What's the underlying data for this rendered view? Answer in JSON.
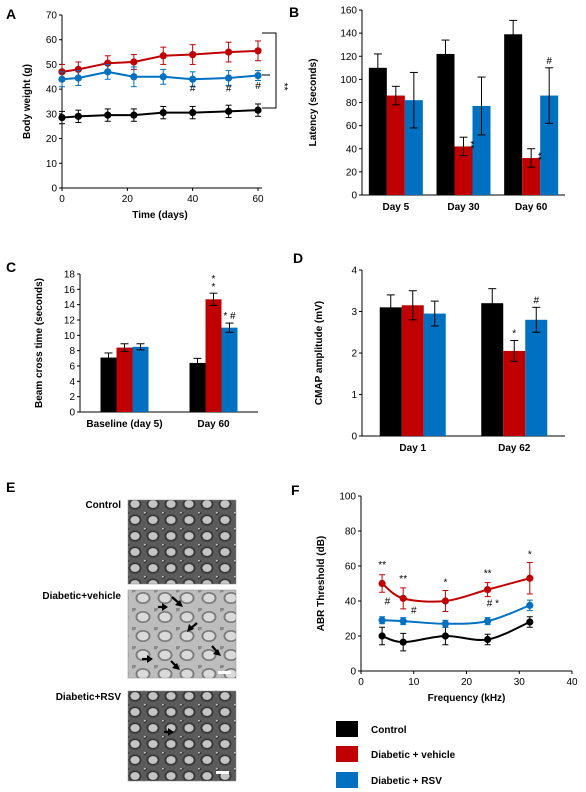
{
  "chart_data": [
    {
      "panel": "A",
      "type": "line",
      "xlabel": "Time (days)",
      "ylabel": "Body weight (g)",
      "xlim": [
        0,
        60
      ],
      "ylim": [
        0,
        70
      ],
      "x_ticks": [
        0,
        20,
        40,
        60
      ],
      "y_ticks": [
        0,
        10,
        20,
        30,
        40,
        50,
        60,
        70
      ],
      "x": [
        0,
        5,
        14,
        22,
        31,
        40,
        51,
        60
      ],
      "series": [
        {
          "name": "Control",
          "color": "#000000",
          "values": [
            28.5,
            29,
            29.5,
            29.5,
            30.5,
            30.5,
            31,
            31.5
          ],
          "errors": [
            2.5,
            2.5,
            2.5,
            2.5,
            2.5,
            2.5,
            2.5,
            2.5
          ]
        },
        {
          "name": "Diabetic + vehicle",
          "color": "#c00000",
          "values": [
            47,
            48,
            50.5,
            51,
            53.5,
            54,
            55,
            55.5
          ],
          "errors": [
            3,
            3,
            3,
            3,
            3.5,
            4,
            4,
            4
          ]
        },
        {
          "name": "Diabetic + RSV",
          "color": "#0070c0",
          "values": [
            44,
            44.5,
            47,
            45,
            45,
            44,
            44.5,
            45.5
          ],
          "errors": [
            3,
            3,
            3,
            4,
            3,
            3,
            3,
            2
          ]
        }
      ],
      "annotations": [
        {
          "text": "#",
          "x": 40,
          "y": 39
        },
        {
          "text": "#",
          "x": 51,
          "y": 39
        },
        {
          "text": "#",
          "x": 60,
          "y": 40
        },
        {
          "text": "**",
          "x": 67,
          "y": 41
        }
      ]
    },
    {
      "panel": "B",
      "type": "bar",
      "ylabel": "Latency (seconds)",
      "ylim": [
        0,
        160
      ],
      "y_ticks": [
        0,
        20,
        40,
        60,
        80,
        100,
        120,
        140,
        160
      ],
      "categories": [
        "Day 5",
        "Day 30",
        "Day 60"
      ],
      "series": [
        {
          "name": "Control",
          "color": "#000000",
          "values": [
            110,
            122,
            139
          ],
          "errors": [
            12,
            12,
            12
          ]
        },
        {
          "name": "Diabetic + vehicle",
          "color": "#c00000",
          "values": [
            86,
            42,
            32
          ],
          "errors": [
            8,
            8,
            8
          ]
        },
        {
          "name": "Diabetic + RSV",
          "color": "#0070c0",
          "values": [
            82,
            77,
            86
          ],
          "errors": [
            24,
            25,
            24
          ]
        }
      ],
      "annotations": [
        {
          "text": "**",
          "category": "Day 30",
          "series": "Diabetic + vehicle"
        },
        {
          "text": "**",
          "category": "Day 60",
          "series": "Diabetic + vehicle"
        },
        {
          "text": "#",
          "category": "Day 60",
          "series": "Diabetic + RSV"
        }
      ]
    },
    {
      "panel": "C",
      "type": "bar",
      "ylabel": "Beam cross time (seconds)",
      "ylim": [
        0,
        18
      ],
      "y_ticks": [
        0,
        2,
        4,
        6,
        8,
        10,
        12,
        14,
        16,
        18
      ],
      "categories": [
        "Baseline (day 5)",
        "Day 60"
      ],
      "series": [
        {
          "name": "Control",
          "color": "#000000",
          "values": [
            7.1,
            6.4
          ],
          "errors": [
            0.6,
            0.6
          ]
        },
        {
          "name": "Diabetic + vehicle",
          "color": "#c00000",
          "values": [
            8.4,
            14.7
          ],
          "errors": [
            0.5,
            0.8
          ]
        },
        {
          "name": "Diabetic + RSV",
          "color": "#0070c0",
          "values": [
            8.5,
            11
          ],
          "errors": [
            0.4,
            0.6
          ]
        }
      ],
      "annotations": [
        {
          "text": "**",
          "category": "Day 60",
          "series": "Diabetic + vehicle"
        },
        {
          "text": "* #",
          "category": "Day 60",
          "series": "Diabetic + RSV"
        }
      ]
    },
    {
      "panel": "D",
      "type": "bar",
      "ylabel": "CMAP amplitude (mV)",
      "ylim": [
        0,
        4
      ],
      "y_ticks": [
        0,
        1,
        2,
        3,
        4
      ],
      "categories": [
        "Day 1",
        "Day 62"
      ],
      "series": [
        {
          "name": "Control",
          "color": "#000000",
          "values": [
            3.1,
            3.2
          ],
          "errors": [
            0.3,
            0.35
          ]
        },
        {
          "name": "Diabetic + vehicle",
          "color": "#c00000",
          "values": [
            3.15,
            2.05
          ],
          "errors": [
            0.35,
            0.25
          ]
        },
        {
          "name": "Diabetic + RSV",
          "color": "#0070c0",
          "values": [
            2.95,
            2.8
          ],
          "errors": [
            0.3,
            0.3
          ]
        }
      ],
      "annotations": [
        {
          "text": "*",
          "category": "Day 62",
          "series": "Diabetic + vehicle"
        },
        {
          "text": "#",
          "category": "Day 62",
          "series": "Diabetic + RSV"
        }
      ]
    },
    {
      "panel": "F",
      "type": "line",
      "xlabel": "Frequency (kHz)",
      "ylabel": "ABR Threshold (dB)",
      "xlim": [
        0,
        40
      ],
      "ylim": [
        0,
        100
      ],
      "x_ticks": [
        0,
        10,
        20,
        30,
        40
      ],
      "y_ticks": [
        0,
        20,
        40,
        60,
        80,
        100
      ],
      "x": [
        4,
        8,
        16,
        24,
        32
      ],
      "series": [
        {
          "name": "Control",
          "color": "#000000",
          "values": [
            20,
            16.5,
            20,
            18,
            28
          ],
          "errors": [
            5,
            5,
            5,
            3,
            3
          ]
        },
        {
          "name": "Diabetic + vehicle",
          "color": "#c00000",
          "values": [
            50,
            41.5,
            40,
            46.5,
            53
          ],
          "errors": [
            5,
            6,
            6,
            4,
            9
          ]
        },
        {
          "name": "Diabetic + RSV",
          "color": "#0070c0",
          "values": [
            29,
            28.5,
            27,
            28.5,
            37.5
          ],
          "errors": [
            2,
            2,
            2,
            2,
            3
          ]
        }
      ],
      "annotations": [
        {
          "text": "**",
          "x": 4,
          "y": 59
        },
        {
          "text": "**",
          "x": 8,
          "y": 51
        },
        {
          "text": "*",
          "x": 16,
          "y": 49
        },
        {
          "text": "**",
          "x": 24,
          "y": 54
        },
        {
          "text": "*",
          "x": 32,
          "y": 65
        },
        {
          "text": "#",
          "x": 5,
          "y": 38
        },
        {
          "text": "#",
          "x": 10,
          "y": 33
        },
        {
          "text": "# *",
          "x": 25,
          "y": 37
        }
      ]
    }
  ],
  "panels": {
    "A": "A",
    "B": "B",
    "C": "C",
    "D": "D",
    "E": "E",
    "F": "F"
  },
  "micrographs": {
    "labels": [
      "Control",
      "Diabetic+vehicle",
      "Diabetic+RSV"
    ]
  },
  "legend": {
    "items": [
      {
        "label": "Control",
        "color": "#000000"
      },
      {
        "label": "Diabetic + vehicle",
        "color": "#c00000"
      },
      {
        "label": "Diabetic + RSV",
        "color": "#0070c0"
      }
    ]
  }
}
